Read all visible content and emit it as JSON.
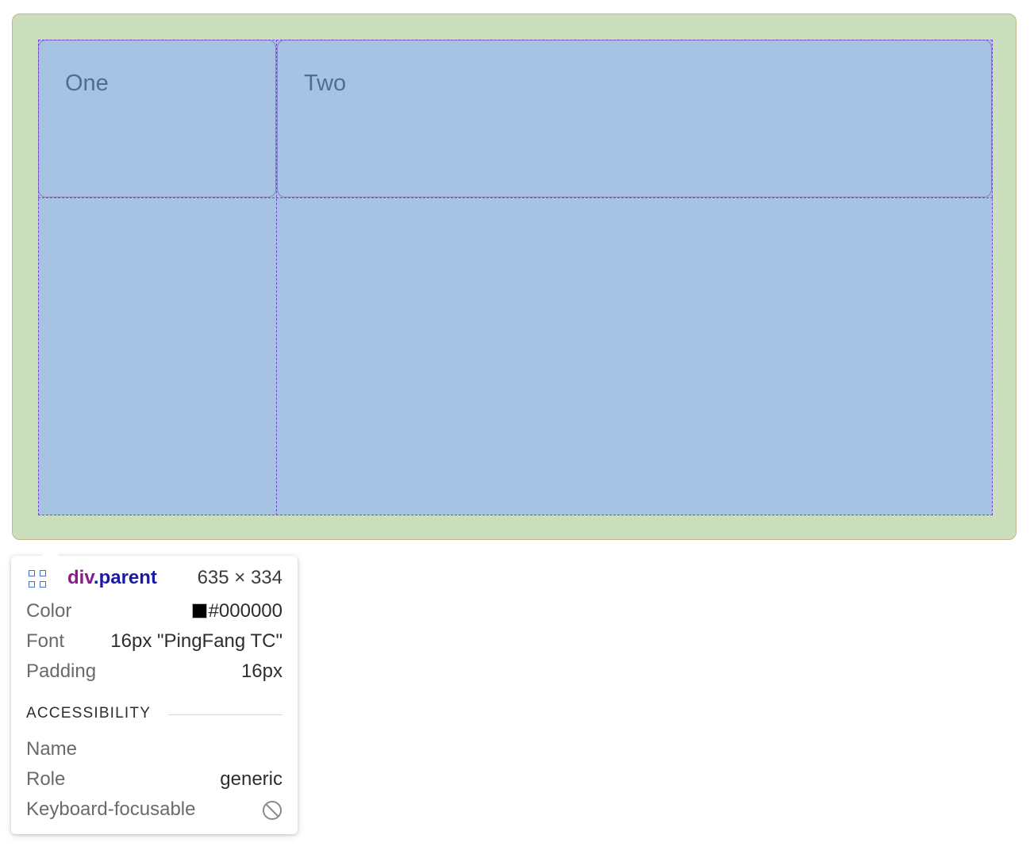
{
  "grid": {
    "cells": [
      {
        "label": "One"
      },
      {
        "label": "Two"
      }
    ]
  },
  "tooltip": {
    "tag": "div",
    "class_name": ".parent",
    "size": "635 × 334",
    "rows": [
      {
        "key": "Color",
        "value": "#000000",
        "swatch": "#000000"
      },
      {
        "key": "Font",
        "value": "16px \"PingFang TC\""
      },
      {
        "key": "Padding",
        "value": "16px"
      }
    ],
    "accessibility_title": "ACCESSIBILITY",
    "accessibility_rows": [
      {
        "key": "Name",
        "value": ""
      },
      {
        "key": "Role",
        "value": "generic"
      },
      {
        "key": "Keyboard-focusable",
        "icon": "not-allowed-icon"
      }
    ]
  },
  "colors": {
    "parent_background": "#cbdfbe",
    "grid_background": "#a7c3e3",
    "grid_line": "#7b3fe0",
    "label_text": "#4e6e94"
  }
}
